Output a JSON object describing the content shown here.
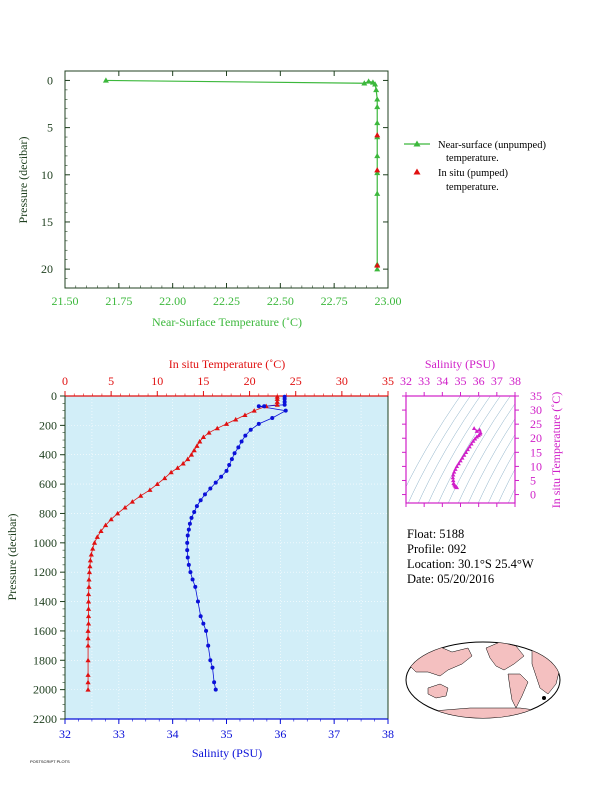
{
  "colors": {
    "green": "#3cb83c",
    "axis_green": "#3a8a3a",
    "red": "#e01010",
    "blue": "#0a10d8",
    "magenta": "#d020c8",
    "dark": "#204020",
    "panel_bg": "#d2eef8"
  },
  "legend": {
    "near_surface_l1": "Near-surface (unpumped)",
    "near_surface_l2": "temperature.",
    "in_situ_l1": "In situ (pumped)",
    "in_situ_l2": "temperature."
  },
  "info": {
    "float": "Float:  5188",
    "profile": "Profile:  092",
    "location": "Location:  30.1°S  25.4°W",
    "date": "Date:  05/20/2016"
  },
  "footer": "POSTSCRIPT PLOTS",
  "chart_data": [
    {
      "type": "line",
      "title": "",
      "xlabel": "Near-Surface Temperature (˚C)",
      "ylabel": "Pressure (decibar)",
      "xlim": [
        21.5,
        23.0
      ],
      "ylim": [
        22,
        -1
      ],
      "xticks": [
        "21.50",
        "21.75",
        "22.00",
        "22.25",
        "22.50",
        "22.75",
        "23.00"
      ],
      "xtick_values": [
        21.5,
        21.75,
        22.0,
        22.25,
        22.5,
        22.75,
        23.0
      ],
      "yticks": [
        "0",
        "5",
        "10",
        "15",
        "20"
      ],
      "ytick_values": [
        0,
        5,
        10,
        15,
        20
      ],
      "series": [
        {
          "name": "Near-surface (unpumped) temperature.",
          "color": "#3cb83c",
          "marker": "triangle",
          "x": [
            21.69,
            22.89,
            22.91,
            22.93,
            22.94,
            22.945,
            22.95,
            22.95,
            22.95,
            22.95,
            22.95,
            22.95,
            22.95,
            22.95,
            22.95
          ],
          "y": [
            0.0,
            0.3,
            0.1,
            0.2,
            0.4,
            1.0,
            2.0,
            2.8,
            4.5,
            6.0,
            8.0,
            9.8,
            12.0,
            19.5,
            20.0
          ]
        },
        {
          "name": "In situ (pumped) temperature.",
          "color": "#e01010",
          "marker": "triangle",
          "x": [
            22.95,
            22.95,
            22.95
          ],
          "y": [
            5.8,
            9.5,
            19.6
          ]
        }
      ]
    },
    {
      "type": "line",
      "title": "",
      "top_axis_label": "In situ Temperature (˚C)",
      "bottom_axis_label": "Salinity (PSU)",
      "ylabel": "Pressure (decibar)",
      "top_axis_lim": [
        0,
        35
      ],
      "bottom_axis_lim": [
        32,
        38
      ],
      "ylim": [
        2200,
        0
      ],
      "top_ticks": [
        "0",
        "5",
        "10",
        "15",
        "20",
        "25",
        "30",
        "35"
      ],
      "top_tick_values": [
        0,
        5,
        10,
        15,
        20,
        25,
        30,
        35
      ],
      "bottom_ticks": [
        "32",
        "33",
        "34",
        "35",
        "36",
        "37",
        "38"
      ],
      "bottom_tick_values": [
        32,
        33,
        34,
        35,
        36,
        37,
        38
      ],
      "yticks": [
        "0",
        "200",
        "400",
        "600",
        "800",
        "1000",
        "1200",
        "1400",
        "1600",
        "1800",
        "2000",
        "2200"
      ],
      "ytick_values": [
        0,
        200,
        400,
        600,
        800,
        1000,
        1200,
        1400,
        1600,
        1800,
        2000,
        2200
      ],
      "series": [
        {
          "name": "In situ Temperature",
          "color": "#e01010",
          "marker": "triangle",
          "x": [
            23.0,
            23.0,
            23.0,
            23.0,
            21.8,
            20.5,
            19.5,
            18.5,
            17.5,
            16.5,
            15.6,
            15.0,
            14.6,
            14.3,
            14.0,
            13.7,
            13.3,
            12.8,
            12.2,
            11.5,
            10.8,
            10.0,
            9.2,
            8.2,
            7.3,
            6.5,
            5.7,
            5.0,
            4.4,
            3.9,
            3.5,
            3.2,
            3.0,
            2.85,
            2.75,
            2.7,
            2.65,
            2.6,
            2.6,
            2.55,
            2.55,
            2.55,
            2.55,
            2.55,
            2.5,
            2.5,
            2.5,
            2.5,
            2.5,
            2.5,
            2.5
          ],
          "y": [
            5,
            20,
            40,
            60,
            70,
            100,
            130,
            160,
            190,
            220,
            250,
            280,
            310,
            340,
            370,
            400,
            430,
            460,
            490,
            520,
            560,
            600,
            640,
            680,
            720,
            760,
            800,
            840,
            880,
            920,
            960,
            1000,
            1040,
            1080,
            1120,
            1160,
            1200,
            1250,
            1300,
            1350,
            1400,
            1450,
            1500,
            1550,
            1600,
            1650,
            1700,
            1800,
            1900,
            1950,
            2000
          ]
        },
        {
          "name": "Salinity",
          "color": "#0a10d8",
          "marker": "circle",
          "x": [
            36.08,
            36.08,
            36.08,
            36.08,
            35.7,
            35.6,
            36.1,
            35.85,
            35.6,
            35.45,
            35.35,
            35.28,
            35.22,
            35.15,
            35.1,
            35.05,
            35.0,
            34.9,
            34.8,
            34.7,
            34.6,
            34.52,
            34.45,
            34.4,
            34.35,
            34.32,
            34.3,
            34.28,
            34.27,
            34.27,
            34.28,
            34.3,
            34.33,
            34.37,
            34.42,
            34.47,
            34.52,
            34.57,
            34.62,
            34.66,
            34.7,
            34.74,
            34.77,
            34.8
          ],
          "y": [
            5,
            20,
            40,
            60,
            70,
            70,
            100,
            150,
            190,
            230,
            270,
            310,
            350,
            390,
            430,
            470,
            510,
            550,
            590,
            630,
            670,
            710,
            750,
            790,
            830,
            870,
            910,
            950,
            1000,
            1050,
            1100,
            1150,
            1200,
            1250,
            1300,
            1400,
            1500,
            1550,
            1600,
            1700,
            1800,
            1850,
            1950,
            2000
          ]
        }
      ]
    },
    {
      "type": "scatter",
      "title": "",
      "xlabel": "Salinity (PSU)",
      "ylabel": "In situ Temperature (˚C)",
      "xlim": [
        32,
        38
      ],
      "ylim": [
        -3,
        35
      ],
      "xticks": [
        "32",
        "33",
        "34",
        "35",
        "36",
        "37",
        "38"
      ],
      "xtick_values": [
        32,
        33,
        34,
        35,
        36,
        37,
        38
      ],
      "yticks": [
        "0",
        "5",
        "10",
        "15",
        "20",
        "25",
        "30",
        "35"
      ],
      "ytick_values": [
        0,
        5,
        10,
        15,
        20,
        25,
        30,
        35
      ],
      "series": [
        {
          "name": "",
          "color": "#d020c8",
          "marker": "triangle",
          "x": [
            34.8,
            34.78,
            34.74,
            34.7,
            34.66,
            34.62,
            34.6,
            34.58,
            34.6,
            34.65,
            34.72,
            34.8,
            34.9,
            35.0,
            35.1,
            35.2,
            35.3,
            35.4,
            35.5,
            35.6,
            35.7,
            35.8,
            35.9,
            36.0,
            36.08,
            36.1,
            36.05,
            35.9,
            35.75
          ],
          "y": [
            2.5,
            2.6,
            2.8,
            3.1,
            3.5,
            4.0,
            5.0,
            6.0,
            7.0,
            8.0,
            9.0,
            10.0,
            11.0,
            12.0,
            13.0,
            14.0,
            15.0,
            16.0,
            17.0,
            18.0,
            19.0,
            19.8,
            20.5,
            21.0,
            21.5,
            22.0,
            23.0,
            22.5,
            23.5
          ]
        }
      ]
    }
  ]
}
